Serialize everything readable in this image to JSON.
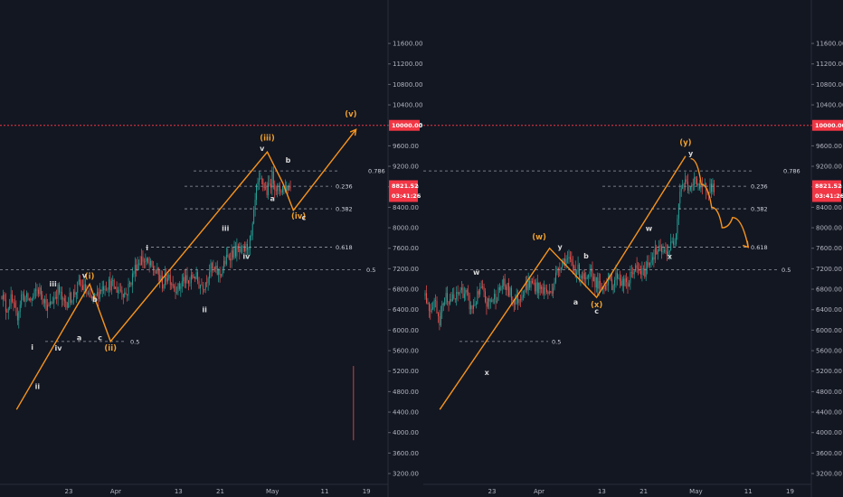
{
  "colors": {
    "background": "#131722",
    "grid": "#1e222d",
    "up": "#26a69a",
    "down": "#ef5350",
    "wave": "#f7941d",
    "fib": "#9598a1",
    "level_10000": "#f23645",
    "price_tag": "#f23645"
  },
  "chart_data": [
    {
      "type": "candlestick",
      "symbol_panel": "left",
      "x_ticks": [
        "23",
        "Apr",
        "13",
        "21",
        "May",
        "11",
        "19"
      ],
      "y_ticks": [
        "3200.00",
        "3600.00",
        "4000.00",
        "4400.00",
        "4800.00",
        "5200.00",
        "5600.00",
        "6000.00",
        "6400.00",
        "6800.00",
        "7200.00",
        "7600.00",
        "8000.00",
        "8400.00",
        "8800.00",
        "9200.00",
        "9600.00",
        "10000.00",
        "10400.00",
        "10800.00",
        "11200.00",
        "11600.00"
      ],
      "ylim": [
        3130,
        12060
      ],
      "grid": false,
      "price_line": {
        "value": 10000,
        "label": "10000.00"
      },
      "last_price": {
        "value": 8821.52,
        "label": "8821.52",
        "countdown": "03:41:26"
      },
      "fib_levels": [
        {
          "label": "0.786",
          "value": 9110
        },
        {
          "label": "0.236",
          "value": 8810
        },
        {
          "label": "0.382",
          "value": 8370
        },
        {
          "label": "0.618",
          "value": 7620
        },
        {
          "label": "0.5",
          "value": 7180
        },
        {
          "label": "0.5",
          "value": 5780
        }
      ],
      "wave_path": [
        {
          "x": "Mar 13",
          "y": 4450
        },
        {
          "x": "Mar 27",
          "y": 6900
        },
        {
          "x": "Mar 31",
          "y": 5780
        },
        {
          "x": "Apr 30",
          "y": 9480
        },
        {
          "x": "May 03",
          "y": 8870
        },
        {
          "x": "May 05",
          "y": 8340
        },
        {
          "x": "May 17",
          "y": 9920
        }
      ],
      "wave_labels": [
        {
          "text": "(i)",
          "x": "Mar 27",
          "y": 7000,
          "style": "orange"
        },
        {
          "text": "(ii)",
          "x": "Mar 31",
          "y": 5600,
          "style": "orange"
        },
        {
          "text": "(iii)",
          "x": "Apr 30",
          "y": 9700,
          "style": "orange"
        },
        {
          "text": "(iv)",
          "x": "May 06",
          "y": 8180,
          "style": "orange"
        },
        {
          "text": "(v)",
          "x": "May 16",
          "y": 10170,
          "style": "orange"
        },
        {
          "text": "i",
          "x": "Mar 16",
          "y": 5620,
          "style": "white"
        },
        {
          "text": "ii",
          "x": "Mar 17",
          "y": 4850,
          "style": "white"
        },
        {
          "text": "iii",
          "x": "Mar 20",
          "y": 6850,
          "style": "white"
        },
        {
          "text": "iv",
          "x": "Mar 21",
          "y": 5600,
          "style": "white"
        },
        {
          "text": "v",
          "x": "Mar 26",
          "y": 7020,
          "style": "white"
        },
        {
          "text": "a",
          "x": "Mar 25",
          "y": 5800,
          "style": "white"
        },
        {
          "text": "b",
          "x": "Mar 28",
          "y": 6550,
          "style": "white"
        },
        {
          "text": "c",
          "x": "Mar 29",
          "y": 5800,
          "style": "white"
        },
        {
          "text": "i",
          "x": "Apr 7",
          "y": 7560,
          "style": "white"
        },
        {
          "text": "ii",
          "x": "Apr 18",
          "y": 6350,
          "style": "white"
        },
        {
          "text": "iii",
          "x": "Apr 22",
          "y": 7940,
          "style": "white"
        },
        {
          "text": "iv",
          "x": "Apr 26",
          "y": 7390,
          "style": "white"
        },
        {
          "text": "v",
          "x": "Apr 29",
          "y": 9500,
          "style": "white"
        },
        {
          "text": "a",
          "x": "May 01",
          "y": 8520,
          "style": "white"
        },
        {
          "text": "b",
          "x": "May 04",
          "y": 9270,
          "style": "white"
        },
        {
          "text": "c",
          "x": "May 07",
          "y": 8150,
          "style": "white"
        }
      ]
    },
    {
      "type": "candlestick",
      "symbol_panel": "right",
      "x_ticks": [
        "23",
        "Apr",
        "13",
        "21",
        "May",
        "11",
        "19"
      ],
      "y_ticks": [
        "3200.00",
        "3600.00",
        "4000.00",
        "4400.00",
        "4800.00",
        "5200.00",
        "5600.00",
        "6000.00",
        "6400.00",
        "6800.00",
        "7200.00",
        "7600.00",
        "8000.00",
        "8400.00",
        "8800.00",
        "9200.00",
        "9600.00",
        "10000.00",
        "10400.00",
        "10800.00",
        "11200.00",
        "11600.00"
      ],
      "ylim": [
        3130,
        12060
      ],
      "grid": false,
      "price_line": {
        "value": 10000,
        "label": "10000.00"
      },
      "last_price": {
        "value": 8821.52,
        "label": "8821.52",
        "countdown": "03:41:26"
      },
      "fib_levels": [
        {
          "label": "0.786",
          "value": 9110
        },
        {
          "label": "0.236",
          "value": 8810
        },
        {
          "label": "0.382",
          "value": 8370
        },
        {
          "label": "0.618",
          "value": 7620
        },
        {
          "label": "0.5",
          "value": 7180
        },
        {
          "label": "0.5",
          "value": 5780
        }
      ],
      "wave_path": [
        {
          "x": "Mar 13",
          "y": 4450
        },
        {
          "x": "Apr 03",
          "y": 7600
        },
        {
          "x": "Apr 12",
          "y": 6640
        },
        {
          "x": "Apr 29",
          "y": 9400
        }
      ],
      "projection": [
        {
          "x": "Apr 30",
          "y": 9350
        },
        {
          "x": "May 02",
          "y": 8850
        },
        {
          "x": "May 04",
          "y": 8400
        },
        {
          "x": "May 06",
          "y": 8000
        },
        {
          "x": "May 08",
          "y": 8200
        },
        {
          "x": "May 11",
          "y": 7620
        }
      ],
      "wave_labels": [
        {
          "text": "(w)",
          "x": "Apr 01",
          "y": 7770,
          "style": "orange"
        },
        {
          "text": "(x)",
          "x": "Apr 12",
          "y": 6450,
          "style": "orange"
        },
        {
          "text": "(y)",
          "x": "Apr 29",
          "y": 9620,
          "style": "orange"
        },
        {
          "text": "w",
          "x": "Mar 20",
          "y": 7080,
          "style": "white"
        },
        {
          "text": "x",
          "x": "Mar 22",
          "y": 5120,
          "style": "white"
        },
        {
          "text": "y",
          "x": "Apr 05",
          "y": 7580,
          "style": "white"
        },
        {
          "text": "a",
          "x": "Apr 08",
          "y": 6500,
          "style": "white"
        },
        {
          "text": "b",
          "x": "Apr 10",
          "y": 7400,
          "style": "white"
        },
        {
          "text": "c",
          "x": "Apr 12",
          "y": 6320,
          "style": "white"
        },
        {
          "text": "w",
          "x": "Apr 22",
          "y": 7940,
          "style": "white"
        },
        {
          "text": "x",
          "x": "Apr 26",
          "y": 7390,
          "style": "white"
        },
        {
          "text": "y",
          "x": "Apr 30",
          "y": 9400,
          "style": "white"
        }
      ]
    }
  ]
}
